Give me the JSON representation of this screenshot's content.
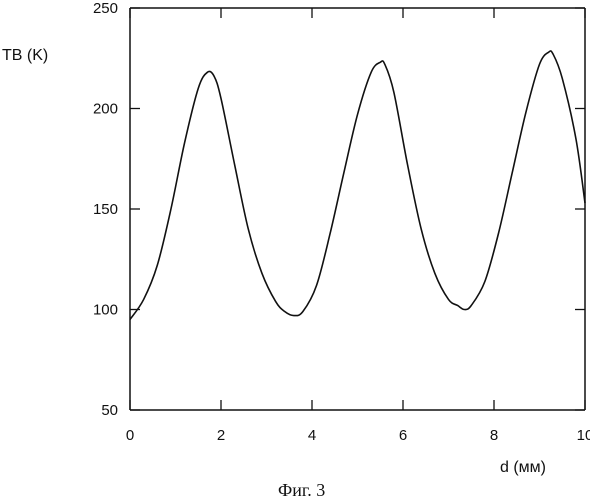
{
  "chart_data": {
    "type": "line",
    "ylabel": "TB (K)",
    "xlabel": "d (мм)",
    "caption": "Фиг. 3",
    "xlim": [
      0,
      10
    ],
    "ylim": [
      50,
      250
    ],
    "x_ticks": [
      0,
      2,
      4,
      6,
      8,
      10
    ],
    "y_ticks": [
      50,
      100,
      150,
      200,
      250
    ],
    "grid": false,
    "series": [
      {
        "x": [
          0,
          0.3,
          0.6,
          0.9,
          1.2,
          1.5,
          1.7,
          1.85,
          2.0,
          2.3,
          2.6,
          2.9,
          3.2,
          3.4,
          3.6,
          3.8,
          4.1,
          4.4,
          4.7,
          5.0,
          5.3,
          5.5,
          5.6,
          5.8,
          6.1,
          6.4,
          6.7,
          7.0,
          7.2,
          7.35,
          7.5,
          7.8,
          8.1,
          8.4,
          8.7,
          9.0,
          9.2,
          9.3,
          9.5,
          9.8,
          10.0
        ],
        "y": [
          95,
          105,
          122,
          150,
          183,
          210,
          218,
          216,
          205,
          172,
          140,
          118,
          104,
          99,
          97,
          99,
          112,
          138,
          168,
          197,
          218,
          223,
          222,
          208,
          172,
          140,
          118,
          105,
          102,
          100,
          102,
          114,
          138,
          168,
          198,
          222,
          228,
          227,
          215,
          185,
          153
        ]
      }
    ]
  }
}
